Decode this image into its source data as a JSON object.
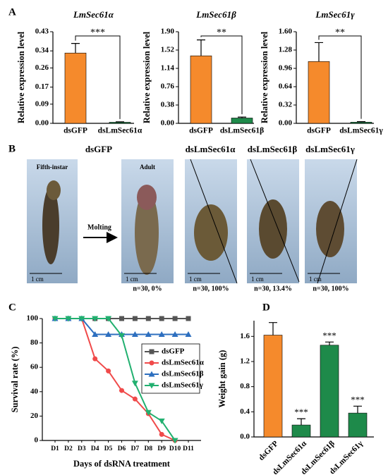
{
  "chart_data": [
    {
      "type": "bar",
      "panel_label": "A",
      "title": "LmSec61α",
      "y_label": "Relative expression level",
      "categories": [
        "dsGFP",
        "dsLmSec61α"
      ],
      "values": [
        0.33,
        0.005
      ],
      "errors": [
        0.045,
        0.002
      ],
      "colors": [
        "#f58a2c",
        "#1e8a4a"
      ],
      "annotation": "***",
      "ylim": [
        0,
        0.43
      ],
      "yticks": [
        {
          "value": 0,
          "label": "0.00"
        },
        0.09,
        0.17,
        0.26,
        0.34,
        0.43
      ]
    },
    {
      "type": "bar",
      "title": "LmSec61β",
      "y_label": "Relative expression level",
      "categories": [
        "dsGFP",
        "dsLmSec61β"
      ],
      "values": [
        1.4,
        0.11
      ],
      "errors": [
        0.33,
        0.02
      ],
      "colors": [
        "#f58a2c",
        "#1e8a4a"
      ],
      "annotation": "**",
      "ylim": [
        0,
        1.9
      ],
      "yticks": [
        {
          "value": 0,
          "label": "0.00"
        },
        0.38,
        0.76,
        1.14,
        1.52,
        {
          "value": 1.9,
          "label": "1.90"
        }
      ]
    },
    {
      "type": "bar",
      "title": "LmSec61γ",
      "y_label": "Relative expression level",
      "categories": [
        "dsGFP",
        "dsLmSec61γ"
      ],
      "values": [
        1.08,
        0.02
      ],
      "errors": [
        0.33,
        0.01
      ],
      "colors": [
        "#f58a2c",
        "#1e8a4a"
      ],
      "annotation": "**",
      "ylim": [
        0,
        1.6
      ],
      "yticks": [
        {
          "value": 0,
          "label": "0.00"
        },
        0.32,
        0.64,
        0.96,
        1.28,
        {
          "value": 1.6,
          "label": "1.60"
        }
      ]
    },
    {
      "type": "line",
      "panel_label": "C",
      "y_label": "Survival rate (%)",
      "x_label": "Days of dsRNA treatment",
      "categories": [
        "D1",
        "D2",
        "D3",
        "D4",
        "D5",
        "D6",
        "D7",
        "D8",
        "D9",
        "D10",
        "D11"
      ],
      "series": [
        {
          "name": "dsGFP",
          "color": "#555555",
          "marker": "square",
          "values": [
            100,
            100,
            100,
            100,
            100,
            100,
            100,
            100,
            100,
            100,
            100
          ]
        },
        {
          "name": "dsLmSec61α",
          "color": "#f04a4a",
          "marker": "circle",
          "values": [
            100,
            100,
            100,
            67,
            57,
            41,
            34,
            22,
            5,
            0,
            null
          ]
        },
        {
          "name": "dsLmSec61β",
          "color": "#2d6fbf",
          "marker": "triangle",
          "values": [
            100,
            100,
            100,
            87,
            87,
            87,
            87,
            87,
            87,
            87,
            87
          ]
        },
        {
          "name": "dsLmSec61γ",
          "color": "#22b070",
          "marker": "triangle-down",
          "values": [
            100,
            100,
            100,
            100,
            100,
            86,
            47,
            23,
            16,
            0,
            null
          ]
        }
      ],
      "legend": "upper right",
      "ylim": [
        0,
        100
      ],
      "yticks": [
        0,
        20,
        40,
        60,
        80,
        100
      ]
    },
    {
      "type": "bar",
      "panel_label": "D",
      "y_label": "Weight gain (g)",
      "categories": [
        "dsGFP",
        "dsLmSec61α",
        "dsLmSec61β",
        "dsLmSec61γ"
      ],
      "values": [
        1.62,
        0.19,
        1.46,
        0.38
      ],
      "errors": [
        0.2,
        0.1,
        0.05,
        0.11
      ],
      "colors": [
        "#f58a2c",
        "#1e8a4a",
        "#1e8a4a",
        "#1e8a4a"
      ],
      "annotation": "***",
      "ylim": [
        0,
        1.85
      ],
      "yticks": [
        {
          "value": 0,
          "label": "0.0"
        },
        0.4,
        0.8,
        1.2,
        1.6
      ]
    }
  ],
  "panel_b": {
    "label": "B",
    "control": "dsGFP",
    "stages": [
      "Fifth-instar",
      "Adult"
    ],
    "arrow": "Molting",
    "treatments": [
      "dsLmSec61α",
      "dsLmSec61β",
      "dsLmSec61γ"
    ],
    "scale_bar": "1 cm",
    "results": [
      "n=30, 0%",
      "n=30, 100%",
      "n=30, 13.4%",
      "n=30, 100%"
    ]
  }
}
